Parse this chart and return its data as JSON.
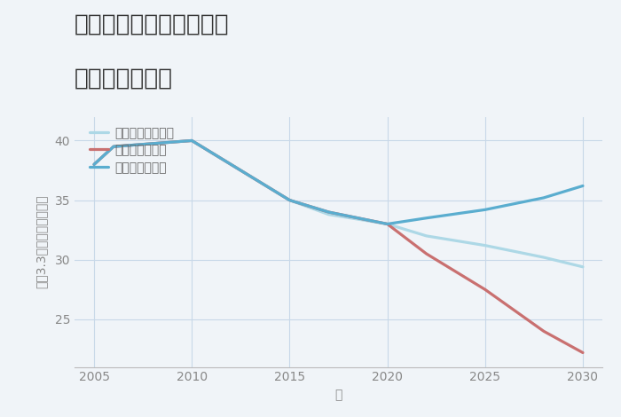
{
  "title_line1": "岐阜県岐阜市柳ヶ瀬通の",
  "title_line2": "土地の価格推移",
  "xlabel": "年",
  "ylabel": "坪（3.3㎡）単価（万円）",
  "background_color": "#f0f4f8",
  "plot_bg_color": "#f0f4f8",
  "series": {
    "good": {
      "label": "グッドシナリオ",
      "color": "#5aadcf",
      "linewidth": 2.3,
      "x": [
        2005,
        2006,
        2010,
        2015,
        2017,
        2020,
        2022,
        2025,
        2028,
        2030
      ],
      "y": [
        38.0,
        39.5,
        40.0,
        35.0,
        34.0,
        33.0,
        33.5,
        34.2,
        35.2,
        36.2
      ]
    },
    "bad": {
      "label": "バッドシナリオ",
      "color": "#c97070",
      "linewidth": 2.3,
      "x": [
        2005,
        2006,
        2010,
        2015,
        2017,
        2020,
        2022,
        2025,
        2028,
        2030
      ],
      "y": [
        38.0,
        39.5,
        40.0,
        35.0,
        34.0,
        33.0,
        30.5,
        27.5,
        24.0,
        22.2
      ]
    },
    "normal": {
      "label": "ノーマルシナリオ",
      "color": "#add8e6",
      "linewidth": 2.3,
      "x": [
        2005,
        2006,
        2010,
        2015,
        2017,
        2020,
        2022,
        2025,
        2028,
        2030
      ],
      "y": [
        38.0,
        39.5,
        40.0,
        35.0,
        33.8,
        33.0,
        32.0,
        31.2,
        30.2,
        29.4
      ]
    }
  },
  "xlim": [
    2004,
    2031
  ],
  "ylim": [
    21,
    42
  ],
  "xticks": [
    2005,
    2010,
    2015,
    2020,
    2025,
    2030
  ],
  "yticks": [
    25,
    30,
    35,
    40
  ],
  "grid_color": "#c8d8e8",
  "title_fontsize": 19,
  "axis_label_fontsize": 10,
  "tick_fontsize": 10,
  "legend_fontsize": 10
}
